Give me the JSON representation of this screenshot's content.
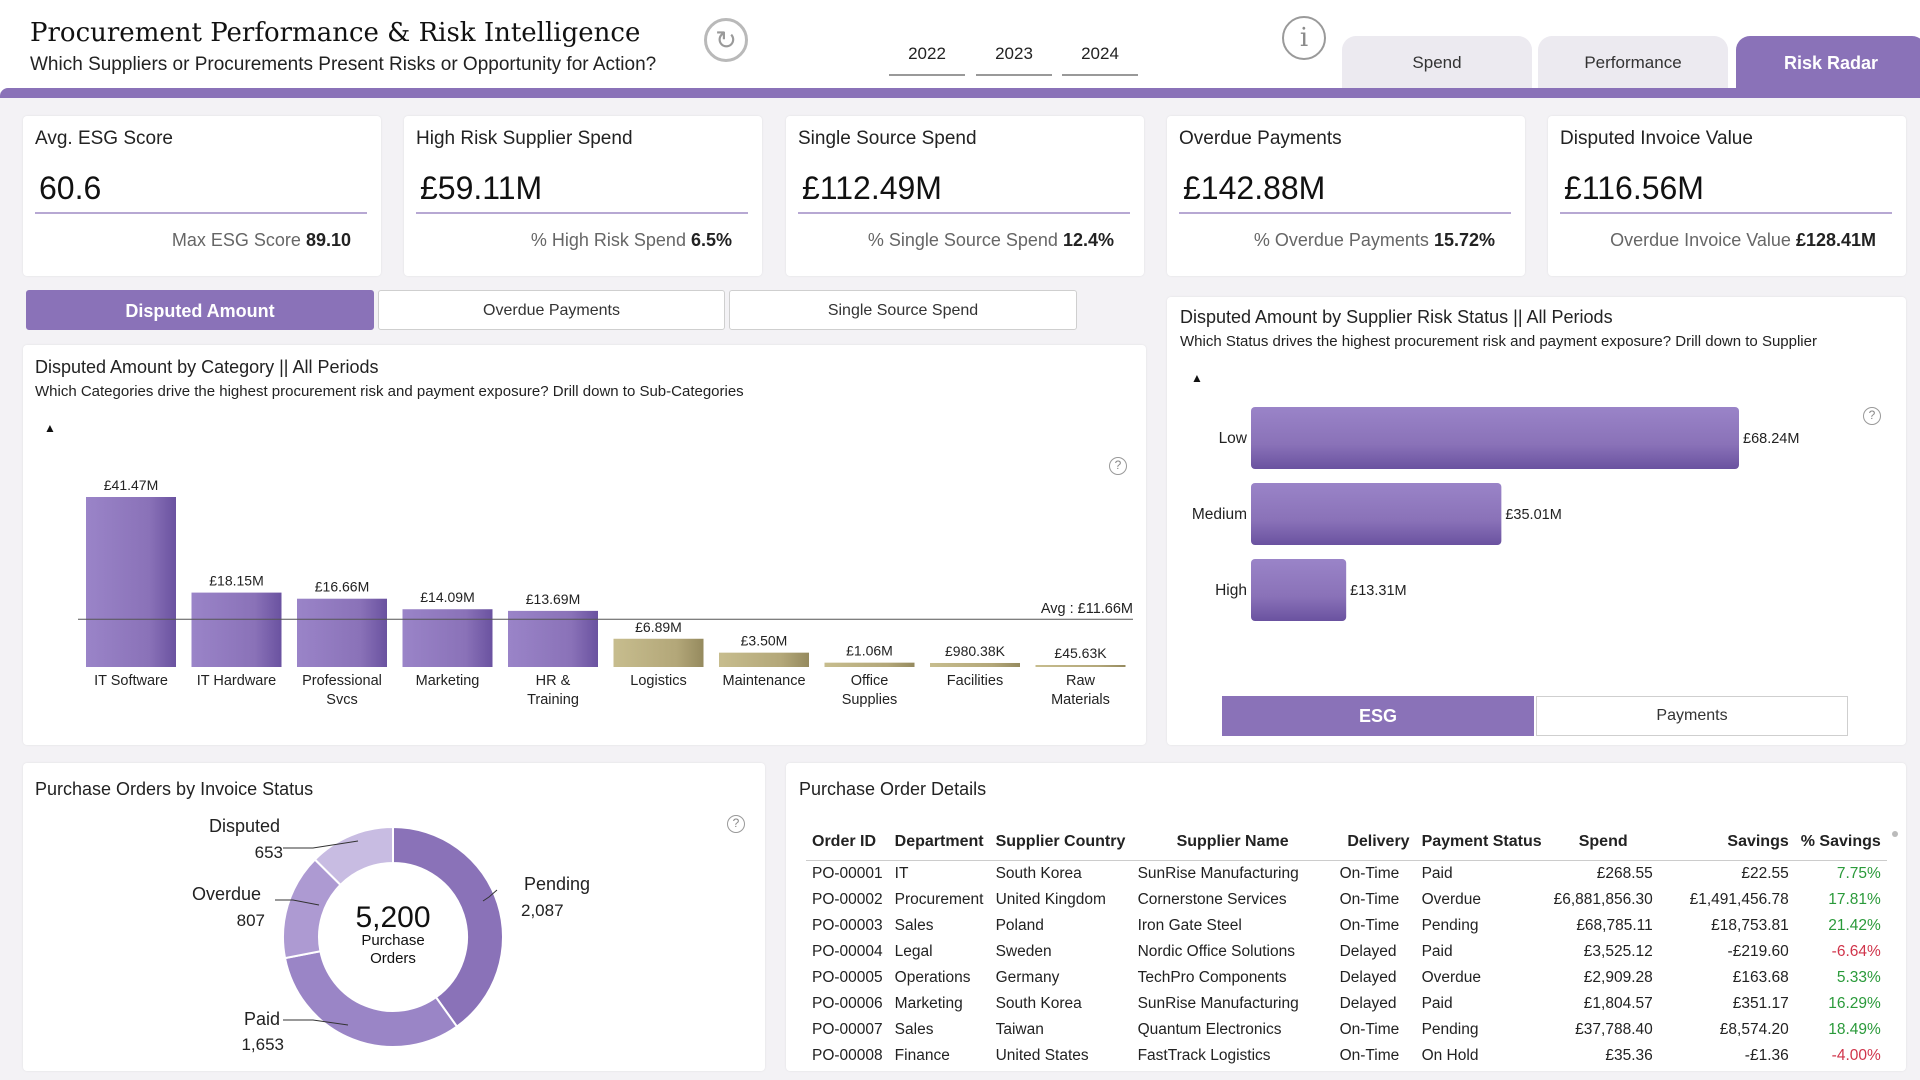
{
  "header": {
    "title": "Procurement Performance & Risk Intelligence",
    "subtitle": "Which Suppliers or Procurements Present Risks or Opportunity for Action?",
    "years": [
      "2022",
      "2023",
      "2024"
    ],
    "tabs": [
      "Spend",
      "Performance",
      "Risk Radar"
    ],
    "active_tab": "Risk Radar",
    "accent": "#8a72b8"
  },
  "kpis": [
    {
      "label": "Avg. ESG Score",
      "value": "60.6",
      "sub_label": "Max ESG Score",
      "sub_value": "89.10"
    },
    {
      "label": "High Risk Supplier Spend",
      "value": "£59.11M",
      "sub_label": "% High Risk Spend",
      "sub_value": "6.5%"
    },
    {
      "label": "Single Source Spend",
      "value": "£112.49M",
      "sub_label": "% Single Source Spend",
      "sub_value": "12.4%"
    },
    {
      "label": "Overdue Payments",
      "value": "£142.88M",
      "sub_label": "% Overdue Payments",
      "sub_value": "15.72%"
    },
    {
      "label": "Disputed Invoice Value",
      "value": "£116.56M",
      "sub_label": "Overdue Invoice Value",
      "sub_value": "£128.41M"
    }
  ],
  "measure_toggles": [
    "Disputed Amount",
    "Overdue Payments",
    "Single Source Spend"
  ],
  "category_panel": {
    "title": "Disputed Amount by Category || All Periods",
    "subtitle": "Which Categories drive the highest procurement risk and payment exposure? Drill down to Sub-Categories"
  },
  "risk_panel": {
    "title": "Disputed Amount by Supplier Risk Status || All Periods",
    "subtitle": "Which Status drives the highest procurement risk and payment exposure? Drill down to Supplier",
    "toggles": [
      "ESG",
      "Payments"
    ]
  },
  "donut_panel": {
    "title": "Purchase Orders by Invoice Status",
    "center_value": "5,200",
    "center_label_1": "Purchase",
    "center_label_2": "Orders",
    "labels": {
      "disputed": "Disputed",
      "disputed_value": "653",
      "overdue": "Overdue",
      "overdue_value": "807",
      "pending": "Pending",
      "pending_value": "2,087",
      "paid": "Paid",
      "paid_value": "1,653"
    }
  },
  "table_panel": {
    "title": "Purchase Order Details",
    "columns": [
      "Order ID",
      "Department",
      "Supplier Country",
      "Supplier Name",
      "Delivery",
      "Payment Status",
      "Spend",
      "Savings",
      "% Savings"
    ],
    "rows": [
      [
        "PO-00001",
        "IT",
        "South Korea",
        "SunRise Manufacturing",
        "On-Time",
        "Paid",
        "£268.55",
        "£22.55",
        "7.75%"
      ],
      [
        "PO-00002",
        "Procurement",
        "United Kingdom",
        "Cornerstone Services",
        "On-Time",
        "Overdue",
        "£6,881,856.30",
        "£1,491,456.78",
        "17.81%"
      ],
      [
        "PO-00003",
        "Sales",
        "Poland",
        "Iron Gate Steel",
        "On-Time",
        "Pending",
        "£68,785.11",
        "£18,753.81",
        "21.42%"
      ],
      [
        "PO-00004",
        "Legal",
        "Sweden",
        "Nordic Office Solutions",
        "Delayed",
        "Paid",
        "£3,525.12",
        "-£219.60",
        "-6.64%"
      ],
      [
        "PO-00005",
        "Operations",
        "Germany",
        "TechPro Components",
        "Delayed",
        "Overdue",
        "£2,909.28",
        "£163.68",
        "5.33%"
      ],
      [
        "PO-00006",
        "Marketing",
        "South Korea",
        "SunRise Manufacturing",
        "Delayed",
        "Paid",
        "£1,804.57",
        "£351.17",
        "16.29%"
      ],
      [
        "PO-00007",
        "Sales",
        "Taiwan",
        "Quantum Electronics",
        "On-Time",
        "Pending",
        "£37,788.40",
        "£8,574.20",
        "18.49%"
      ],
      [
        "PO-00008",
        "Finance",
        "United States",
        "FastTrack Logistics",
        "On-Time",
        "On Hold",
        "£35.36",
        "-£1.36",
        "-4.00%"
      ]
    ]
  },
  "chart_data": [
    {
      "type": "bar",
      "title": "Disputed Amount by Category || All Periods",
      "categories": [
        "IT Software",
        "IT Hardware",
        "Professional Svcs",
        "Marketing",
        "HR & Training",
        "Logistics",
        "Maintenance",
        "Office Supplies",
        "Facilities",
        "Raw Materials"
      ],
      "category_lines": [
        [
          "IT Software"
        ],
        [
          "IT Hardware"
        ],
        [
          "Professional",
          "Svcs"
        ],
        [
          "Marketing"
        ],
        [
          "HR &",
          "Training"
        ],
        [
          "Logistics"
        ],
        [
          "Maintenance"
        ],
        [
          "Office",
          "Supplies"
        ],
        [
          "Facilities"
        ],
        [
          "Raw",
          "Materials"
        ]
      ],
      "values": [
        41.47,
        18.15,
        16.66,
        14.09,
        13.69,
        6.89,
        3.5,
        1.06,
        0.98038,
        0.04563
      ],
      "value_labels": [
        "£41.47M",
        "£18.15M",
        "£16.66M",
        "£14.09M",
        "£13.69M",
        "£6.89M",
        "£3.50M",
        "£1.06M",
        "£980.38K",
        "£45.63K"
      ],
      "average": 11.66,
      "average_label": "Avg : £11.66M",
      "ylim": [
        0,
        41.47
      ],
      "colors": {
        "above_avg": "#8a72b8",
        "below_avg": "#b3a779"
      }
    },
    {
      "type": "bar",
      "orientation": "horizontal",
      "title": "Disputed Amount by Supplier Risk Status || All Periods",
      "categories": [
        "Low",
        "Medium",
        "High"
      ],
      "values": [
        68.24,
        35.01,
        13.31
      ],
      "value_labels": [
        "£68.24M",
        "£35.01M",
        "£13.31M"
      ]
    },
    {
      "type": "pie",
      "title": "Purchase Orders by Invoice Status",
      "categories": [
        "Pending",
        "Paid",
        "Overdue",
        "Disputed"
      ],
      "values": [
        2087,
        1653,
        807,
        653
      ],
      "colors": [
        "#8a72b8",
        "#9a85c6",
        "#ad9ad2",
        "#c8bce2"
      ]
    }
  ]
}
